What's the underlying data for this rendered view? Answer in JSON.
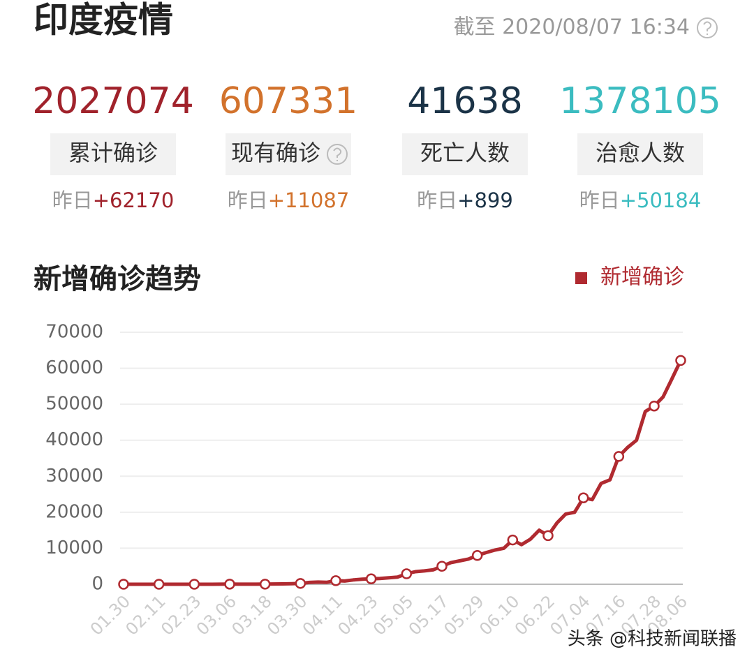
{
  "header": {
    "title": "印度疫情",
    "timestamp": "截至 2020/08/07 16:34"
  },
  "stats": [
    {
      "value": "2027074",
      "label": "累计确诊",
      "delta_label": "昨日",
      "delta": "+62170",
      "color": "#a0222b"
    },
    {
      "value": "607331",
      "label": "现有确诊",
      "delta_label": "昨日",
      "delta": "+11087",
      "color": "#d2722c"
    },
    {
      "value": "41638",
      "label": "死亡人数",
      "delta_label": "昨日",
      "delta": "+899",
      "color": "#1b3347"
    },
    {
      "value": "1378105",
      "label": "治愈人数",
      "delta_label": "昨日",
      "delta": "+50184",
      "color": "#3bbcc0"
    }
  ],
  "chart_data": {
    "type": "line",
    "title": "新增确诊趋势",
    "categories": [
      "01.30",
      null,
      null,
      null,
      "02.11",
      null,
      null,
      null,
      "02.23",
      null,
      null,
      null,
      "03.06",
      null,
      null,
      null,
      "03.18",
      null,
      null,
      null,
      "03.30",
      null,
      null,
      null,
      "04.11",
      null,
      null,
      null,
      "04.23",
      null,
      null,
      null,
      "05.05",
      null,
      null,
      null,
      "05.17",
      null,
      null,
      null,
      "05.29",
      null,
      null,
      null,
      "06.10",
      null,
      null,
      null,
      "06.22",
      null,
      null,
      null,
      "07.04",
      null,
      null,
      null,
      "07.16",
      null,
      null,
      null,
      "07.28",
      null,
      null,
      "08.06"
    ],
    "series": [
      {
        "name": "新增确诊",
        "color": "#b02a30",
        "values": [
          0,
          0,
          0,
          0,
          0,
          0,
          0,
          0,
          0,
          2,
          0,
          20,
          30,
          10,
          20,
          20,
          30,
          70,
          90,
          150,
          230,
          500,
          600,
          550,
          1000,
          900,
          1200,
          1400,
          1500,
          1600,
          1800,
          2000,
          2900,
          3500,
          3700,
          4000,
          5000,
          6000,
          6500,
          7000,
          8000,
          8800,
          9500,
          10000,
          12300,
          11000,
          12500,
          15000,
          13500,
          17000,
          19500,
          20000,
          24000,
          23500,
          28000,
          29000,
          35500,
          38000,
          40000,
          48000,
          49500,
          52000,
          57000,
          62170
        ]
      }
    ],
    "ylim": [
      0,
      70000
    ],
    "yticks": [
      0,
      10000,
      20000,
      30000,
      40000,
      50000,
      60000,
      70000
    ],
    "grid": true,
    "legend": "top-right"
  },
  "watermark": "头条 @科技新闻联播"
}
